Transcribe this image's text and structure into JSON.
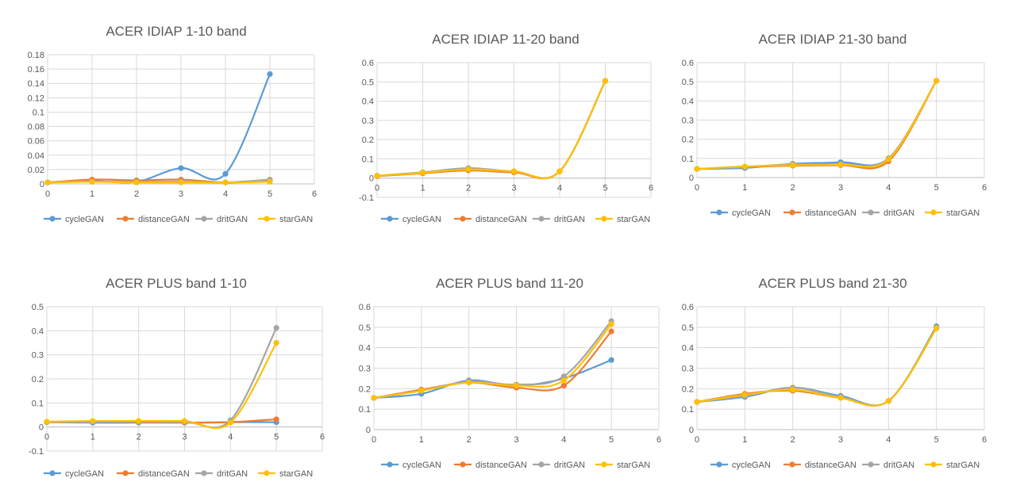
{
  "colors": {
    "cycleGAN": "#5B9BD5",
    "distanceGAN": "#ED7D31",
    "dritGAN": "#A5A5A5",
    "starGAN": "#FFC000",
    "grid": "#D9D9D9",
    "text": "#595959"
  },
  "chart_data": [
    {
      "type": "line",
      "title": "ACER IDIAP 1-10 band",
      "x": [
        0,
        1,
        2,
        3,
        4,
        5
      ],
      "xlim": [
        0,
        6
      ],
      "xticks": [
        "0",
        "1",
        "2",
        "3",
        "4",
        "5",
        "6"
      ],
      "ylim": [
        0,
        0.18
      ],
      "yticks": [
        "0",
        "0.02",
        "0.04",
        "0.06",
        "0.08",
        "0.1",
        "0.12",
        "0.14",
        "0.16",
        "0.18"
      ],
      "legend": "bottom",
      "grid": true,
      "series": [
        {
          "name": "cycleGAN",
          "values": [
            0.002,
            0.004,
            0.003,
            0.022,
            0.014,
            0.153
          ]
        },
        {
          "name": "distanceGAN",
          "values": [
            0.002,
            0.006,
            0.005,
            0.006,
            0.002,
            0.004
          ]
        },
        {
          "name": "dritGAN",
          "values": [
            0.002,
            0.003,
            0.003,
            0.003,
            0.002,
            0.006
          ]
        },
        {
          "name": "starGAN",
          "values": [
            0.002,
            0.003,
            0.002,
            0.002,
            0.002,
            0.003
          ]
        }
      ]
    },
    {
      "type": "line",
      "title": "ACER IDIAP 11-20 band",
      "x": [
        0,
        1,
        2,
        3,
        4,
        5
      ],
      "xlim": [
        0,
        6
      ],
      "xticks": [
        "0",
        "1",
        "2",
        "3",
        "4",
        "5",
        "6"
      ],
      "ylim": [
        -0.1,
        0.6
      ],
      "yticks": [
        "-0.1",
        "0",
        "0.1",
        "0.2",
        "0.3",
        "0.4",
        "0.5",
        "0.6"
      ],
      "legend": "bottom",
      "grid": true,
      "series": [
        {
          "name": "cycleGAN",
          "values": [
            0.012,
            0.03,
            0.045,
            0.035,
            0.035,
            0.505
          ]
        },
        {
          "name": "distanceGAN",
          "values": [
            0.01,
            0.025,
            0.04,
            0.03,
            0.035,
            0.505
          ]
        },
        {
          "name": "dritGAN",
          "values": [
            0.012,
            0.03,
            0.052,
            0.035,
            0.035,
            0.505
          ]
        },
        {
          "name": "starGAN",
          "values": [
            0.012,
            0.028,
            0.045,
            0.035,
            0.035,
            0.505
          ]
        }
      ]
    },
    {
      "type": "line",
      "title": "ACER IDIAP 21-30 band",
      "x": [
        0,
        1,
        2,
        3,
        4,
        5
      ],
      "xlim": [
        0,
        6
      ],
      "xticks": [
        "0",
        "1",
        "2",
        "3",
        "4",
        "5",
        "6"
      ],
      "ylim": [
        0,
        0.6
      ],
      "yticks": [
        "0",
        "0.1",
        "0.2",
        "0.3",
        "0.4",
        "0.5",
        "0.6"
      ],
      "legend": "bottom",
      "grid": true,
      "series": [
        {
          "name": "cycleGAN",
          "values": [
            0.045,
            0.05,
            0.072,
            0.08,
            0.1,
            0.505
          ]
        },
        {
          "name": "distanceGAN",
          "values": [
            0.045,
            0.055,
            0.062,
            0.065,
            0.085,
            0.505
          ]
        },
        {
          "name": "dritGAN",
          "values": [
            0.045,
            0.055,
            0.07,
            0.07,
            0.1,
            0.505
          ]
        },
        {
          "name": "starGAN",
          "values": [
            0.045,
            0.058,
            0.065,
            0.068,
            0.095,
            0.505
          ]
        }
      ]
    },
    {
      "type": "line",
      "title": "ACER PLUS band 1-10",
      "x": [
        0,
        1,
        2,
        3,
        4,
        5
      ],
      "xlim": [
        0,
        6
      ],
      "xticks": [
        "0",
        "1",
        "2",
        "3",
        "4",
        "5",
        "6"
      ],
      "ylim": [
        -0.1,
        0.5
      ],
      "yticks": [
        "-0.1",
        "0",
        "0.1",
        "0.2",
        "0.3",
        "0.4",
        "0.5"
      ],
      "legend": "bottom",
      "grid": true,
      "series": [
        {
          "name": "cycleGAN",
          "values": [
            0.02,
            0.018,
            0.018,
            0.018,
            0.02,
            0.02
          ]
        },
        {
          "name": "distanceGAN",
          "values": [
            0.02,
            0.022,
            0.02,
            0.018,
            0.02,
            0.032
          ]
        },
        {
          "name": "dritGAN",
          "values": [
            0.02,
            0.022,
            0.022,
            0.022,
            0.028,
            0.412
          ]
        },
        {
          "name": "starGAN",
          "values": [
            0.022,
            0.025,
            0.025,
            0.025,
            0.018,
            0.35
          ]
        }
      ]
    },
    {
      "type": "line",
      "title": "ACER PLUS band 11-20",
      "x": [
        0,
        1,
        2,
        3,
        4,
        5
      ],
      "xlim": [
        0,
        6
      ],
      "xticks": [
        "0",
        "1",
        "2",
        "3",
        "4",
        "5",
        "6"
      ],
      "ylim": [
        0,
        0.6
      ],
      "yticks": [
        "0",
        "0.1",
        "0.2",
        "0.3",
        "0.4",
        "0.5",
        "0.6"
      ],
      "legend": "bottom",
      "grid": true,
      "series": [
        {
          "name": "cycleGAN",
          "values": [
            0.155,
            0.175,
            0.24,
            0.215,
            0.25,
            0.34
          ]
        },
        {
          "name": "distanceGAN",
          "values": [
            0.155,
            0.195,
            0.23,
            0.205,
            0.215,
            0.48
          ]
        },
        {
          "name": "dritGAN",
          "values": [
            0.155,
            0.19,
            0.235,
            0.22,
            0.26,
            0.53
          ]
        },
        {
          "name": "starGAN",
          "values": [
            0.155,
            0.19,
            0.23,
            0.215,
            0.24,
            0.515
          ]
        }
      ]
    },
    {
      "type": "line",
      "title": "ACER PLUS band 21-30",
      "x": [
        0,
        1,
        2,
        3,
        4,
        5
      ],
      "xlim": [
        0,
        6
      ],
      "xticks": [
        "0",
        "1",
        "2",
        "3",
        "4",
        "5",
        "6"
      ],
      "ylim": [
        0,
        0.6
      ],
      "yticks": [
        "0",
        "0.1",
        "0.2",
        "0.3",
        "0.4",
        "0.5",
        "0.6"
      ],
      "legend": "bottom",
      "grid": true,
      "series": [
        {
          "name": "cycleGAN",
          "values": [
            0.135,
            0.16,
            0.205,
            0.165,
            0.14,
            0.505
          ]
        },
        {
          "name": "distanceGAN",
          "values": [
            0.135,
            0.175,
            0.19,
            0.155,
            0.14,
            0.495
          ]
        },
        {
          "name": "dritGAN",
          "values": [
            0.135,
            0.165,
            0.205,
            0.16,
            0.14,
            0.5
          ]
        },
        {
          "name": "starGAN",
          "values": [
            0.135,
            0.17,
            0.195,
            0.155,
            0.14,
            0.495
          ]
        }
      ]
    }
  ]
}
